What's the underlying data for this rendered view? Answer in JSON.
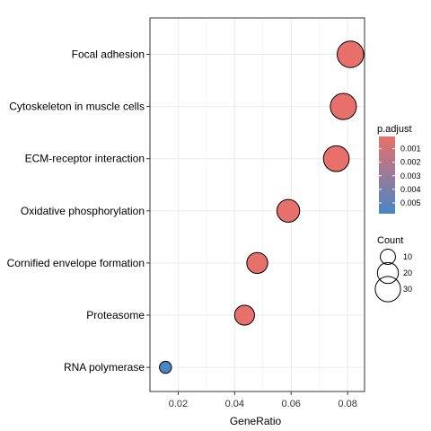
{
  "chart_data": {
    "type": "scatter",
    "title": "",
    "xlabel": "GeneRatio",
    "ylabel": "",
    "xlim": [
      0.01,
      0.086
    ],
    "x_ticks": [
      0.02,
      0.04,
      0.06,
      0.08
    ],
    "x_tick_labels": [
      "0.02",
      "0.04",
      "0.06",
      "0.08"
    ],
    "grid": true,
    "categories": [
      "Focal adhesion",
      "Cytoskeleton in muscle cells",
      "ECM-receptor interaction",
      "Oxidative phosphorylation",
      "Cornified envelope formation",
      "Proteasome",
      "RNA polymerase"
    ],
    "points": [
      {
        "term": "Focal adhesion",
        "gene_ratio": 0.081,
        "count": 33,
        "p_adjust": 0.0001
      },
      {
        "term": "Cytoskeleton in muscle cells",
        "gene_ratio": 0.0785,
        "count": 32,
        "p_adjust": 0.0001
      },
      {
        "term": "ECM-receptor interaction",
        "gene_ratio": 0.076,
        "count": 31,
        "p_adjust": 0.0001
      },
      {
        "term": "Oxidative phosphorylation",
        "gene_ratio": 0.059,
        "count": 24,
        "p_adjust": 0.0001
      },
      {
        "term": "Cornified envelope formation",
        "gene_ratio": 0.048,
        "count": 20,
        "p_adjust": 0.0001
      },
      {
        "term": "Proteasome",
        "gene_ratio": 0.0435,
        "count": 18,
        "p_adjust": 0.0001
      },
      {
        "term": "RNA polymerase",
        "gene_ratio": 0.0155,
        "count": 6,
        "p_adjust": 0.0058
      }
    ],
    "color_legend": {
      "title": "p.adjust",
      "range": [
        0.0001,
        0.0058
      ],
      "ticks": [
        0.001,
        0.002,
        0.003,
        0.004,
        0.005
      ],
      "tick_labels": [
        "0.001",
        "0.002",
        "0.003",
        "0.004",
        "0.005"
      ],
      "low_color": "#E8706A",
      "high_color": "#4A86C5",
      "placement": "right"
    },
    "size_legend": {
      "title": "Count",
      "values": [
        10,
        20,
        30
      ],
      "labels": [
        "10",
        "20",
        "30"
      ],
      "placement": "right"
    },
    "colors": {
      "grid": "#EBEBEB",
      "panel_border": "#333333",
      "point_outline": "#000000",
      "text": "#000000",
      "axis_tick": "#333333"
    }
  }
}
